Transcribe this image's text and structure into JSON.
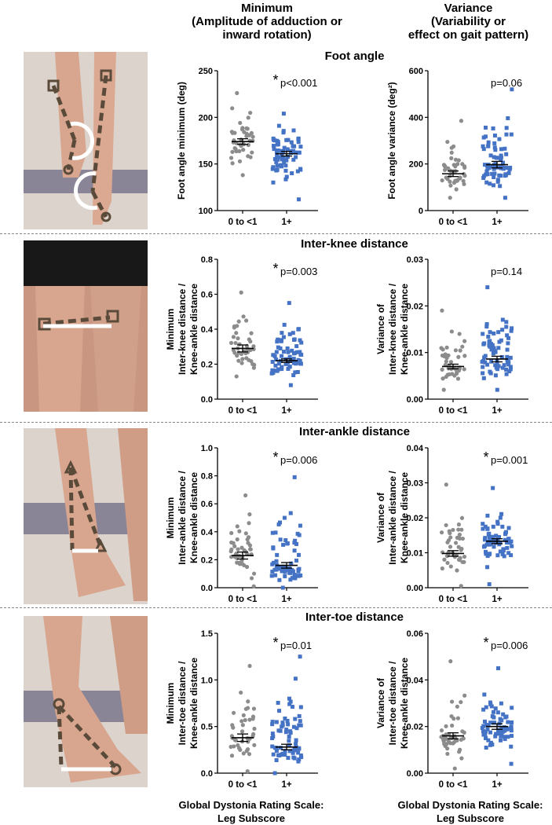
{
  "columns": {
    "minimum": {
      "line1": "Minimum",
      "line2": "(Amplitude of adduction or",
      "line3": "inward rotation)"
    },
    "variance": {
      "line1": "Variance",
      "line2": "(Variability or",
      "line3": "effect on gait pattern)"
    }
  },
  "footer": {
    "left1": "Global Dystonia Rating Scale:",
    "left2": "Leg Subscore",
    "right1": "Global Dystonia Rating Scale:",
    "right2": "Leg Subscore"
  },
  "rows": [
    {
      "title": "Foot angle"
    },
    {
      "title": "Inter-knee distance"
    },
    {
      "title": "Inter-ankle distance"
    },
    {
      "title": "Inter-toe distance"
    }
  ],
  "colors": {
    "group1": "#8c8c8c",
    "group2": "#4472c4",
    "photo_bg": "#d7cfc8",
    "marker": "#5a4a3a"
  },
  "chart_data": [
    {
      "type": "scatter",
      "id": "foot-min",
      "ylabel": [
        "Foot angle minimum (deg)"
      ],
      "categories": [
        "0 to <1",
        "1+"
      ],
      "ylim": [
        100,
        250
      ],
      "ticks": [
        100,
        150,
        200,
        250
      ],
      "annotation": "p<0.001",
      "significant": true,
      "series": [
        {
          "name": "0 to <1",
          "mean": 174,
          "sem": 3,
          "range": [
            138,
            226
          ],
          "n": 42
        },
        {
          "name": "1+",
          "mean": 161,
          "sem": 2.5,
          "range": [
            112,
            204
          ],
          "n": 70
        }
      ]
    },
    {
      "type": "scatter",
      "id": "foot-var",
      "ylabel": [
        "Foot angle variance (deg²)"
      ],
      "categories": [
        "0 to <1",
        "1+"
      ],
      "ylim": [
        0,
        600
      ],
      "ticks": [
        0,
        200,
        400,
        600
      ],
      "annotation": "p=0.06",
      "significant": false,
      "series": [
        {
          "name": "0 to <1",
          "mean": 158,
          "sem": 12,
          "range": [
            55,
            385
          ],
          "n": 42
        },
        {
          "name": "1+",
          "mean": 197,
          "sem": 14,
          "range": [
            55,
            520
          ],
          "n": 70
        }
      ]
    },
    {
      "type": "scatter",
      "id": "knee-min",
      "ylabel": [
        "Minimum",
        "Inter-knee distance /",
        "Knee-ankle distance"
      ],
      "categories": [
        "0 to <1",
        "1+"
      ],
      "ylim": [
        0,
        0.8
      ],
      "ticks": [
        "0.0",
        "0.2",
        "0.4",
        "0.6",
        "0.8"
      ],
      "annotation": "p=0.003",
      "significant": true,
      "series": [
        {
          "name": "0 to <1",
          "mean": 0.29,
          "sem": 0.02,
          "range": [
            0.13,
            0.61
          ],
          "n": 42
        },
        {
          "name": "1+",
          "mean": 0.22,
          "sem": 0.01,
          "range": [
            0.08,
            0.55
          ],
          "n": 70
        }
      ]
    },
    {
      "type": "scatter",
      "id": "knee-var",
      "ylabel": [
        "Variance of",
        "Inter-knee distance /",
        "Knee-ankle distance"
      ],
      "categories": [
        "0 to <1",
        "1+"
      ],
      "ylim": [
        0,
        0.03
      ],
      "ticks": [
        "0.00",
        "0.01",
        "0.02",
        "0.03"
      ],
      "annotation": "p=0.14",
      "significant": false,
      "series": [
        {
          "name": "0 to <1",
          "mean": 0.007,
          "sem": 0.0005,
          "range": [
            0.002,
            0.019
          ],
          "n": 42
        },
        {
          "name": "1+",
          "mean": 0.0086,
          "sem": 0.0006,
          "range": [
            0.002,
            0.024
          ],
          "n": 70
        }
      ]
    },
    {
      "type": "scatter",
      "id": "ankle-min",
      "ylabel": [
        "Minimum",
        "Inter-ankle distance /",
        "Knee-ankle distance"
      ],
      "categories": [
        "0 to <1",
        "1+"
      ],
      "ylim": [
        0,
        1.0
      ],
      "ticks": [
        "0.0",
        "0.2",
        "0.4",
        "0.6",
        "0.8",
        "1.0"
      ],
      "annotation": "p=0.006",
      "significant": true,
      "series": [
        {
          "name": "0 to <1",
          "mean": 0.23,
          "sem": 0.025,
          "range": [
            0.01,
            0.66
          ],
          "n": 42
        },
        {
          "name": "1+",
          "mean": 0.16,
          "sem": 0.02,
          "range": [
            0.0,
            0.79
          ],
          "n": 70
        }
      ]
    },
    {
      "type": "scatter",
      "id": "ankle-var",
      "ylabel": [
        "Variance of",
        "Inter-ankle distance /",
        "Knee-ankle distance"
      ],
      "categories": [
        "0 to <1",
        "1+"
      ],
      "ylim": [
        0,
        0.04
      ],
      "ticks": [
        "0.00",
        "0.01",
        "0.02",
        "0.03",
        "0.04"
      ],
      "annotation": "p=0.001",
      "significant": true,
      "series": [
        {
          "name": "0 to <1",
          "mean": 0.0098,
          "sem": 0.0008,
          "range": [
            0.0005,
            0.0295
          ],
          "n": 42
        },
        {
          "name": "1+",
          "mean": 0.0133,
          "sem": 0.0007,
          "range": [
            0.001,
            0.0285
          ],
          "n": 70
        }
      ]
    },
    {
      "type": "scatter",
      "id": "toe-min",
      "ylabel": [
        "Minimum",
        "Inter-toe distance /",
        "Knee-ankle distance"
      ],
      "categories": [
        "0 to <1",
        "1+"
      ],
      "ylim": [
        0,
        1.5
      ],
      "ticks": [
        "0.0",
        "0.5",
        "1.0",
        "1.5"
      ],
      "annotation": "p=0.01",
      "significant": true,
      "series": [
        {
          "name": "0 to <1",
          "mean": 0.38,
          "sem": 0.04,
          "range": [
            0.02,
            1.15
          ],
          "n": 42
        },
        {
          "name": "1+",
          "mean": 0.28,
          "sem": 0.03,
          "range": [
            0.0,
            1.25
          ],
          "n": 70
        }
      ]
    },
    {
      "type": "scatter",
      "id": "toe-var",
      "ylabel": [
        "Variance of",
        "Inter-toe distance /",
        "Knee-ankle distance"
      ],
      "categories": [
        "0 to <1",
        "1+"
      ],
      "ylim": [
        0,
        0.06
      ],
      "ticks": [
        "0.00",
        "0.02",
        "0.04",
        "0.06"
      ],
      "annotation": "p=0.006",
      "significant": true,
      "series": [
        {
          "name": "0 to <1",
          "mean": 0.016,
          "sem": 0.0013,
          "range": [
            0.002,
            0.048
          ],
          "n": 42
        },
        {
          "name": "1+",
          "mean": 0.02,
          "sem": 0.0012,
          "range": [
            0.004,
            0.045
          ],
          "n": 70
        }
      ]
    }
  ]
}
